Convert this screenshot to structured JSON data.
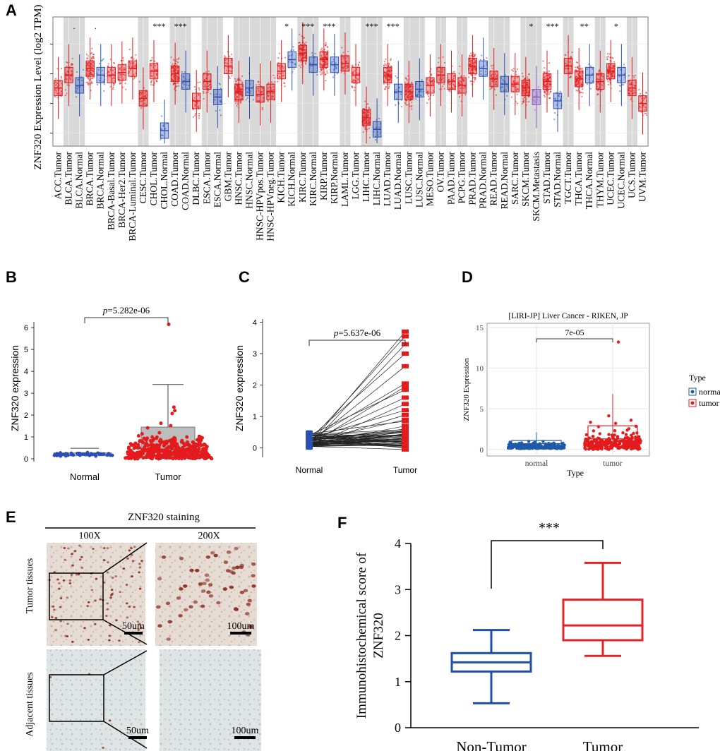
{
  "panels": {
    "A": "A",
    "B": "B",
    "C": "C",
    "D": "D",
    "E": "E",
    "F": "F"
  },
  "colors": {
    "tumor": "#e41a1c",
    "normal": "#2b4fb3",
    "metastasis": "#8e5ec2",
    "shade": "#d9d9d9",
    "boxB": "#bdbdbd",
    "fNormal": "#1f4fa8",
    "fTumor": "#e0242a",
    "dNormal": "#1e5aa8",
    "dTumor": "#e41a1c"
  },
  "chart_data": [
    {
      "id": "A",
      "type": "box",
      "ylabel": "ZNF320 Expression Level (log2 TPM)",
      "categories": [
        "ACC.Tumor",
        "BLCA.Tumor",
        "BLCA.Normal",
        "BRCA.Tumor",
        "BRCA.Normal",
        "BRCA-Basal.Tumor",
        "BRCA-Her2.Tumor",
        "BRCA-Luminal.Tumor",
        "CESC.Tumor",
        "CHOL.Tumor",
        "CHOL.Normal",
        "COAD.Tumor",
        "COAD.Normal",
        "DLBC.Tumor",
        "ESCA.Tumor",
        "ESCA.Normal",
        "GBM.Tumor",
        "HNSC.Tumor",
        "HNSC.Normal",
        "HNSC-HPVpos.Tumor",
        "HNSC-HPVneg.Tumor",
        "KICH.Tumor",
        "KICH.Normal",
        "KIRC.Tumor",
        "KIRC.Normal",
        "KIRP.Tumor",
        "KIRP.Normal",
        "LAML.Tumor",
        "LGG.Tumor",
        "LIHC.Tumor",
        "LIHC.Normal",
        "LUAD.Tumor",
        "LUAD.Normal",
        "LUSC.Tumor",
        "LUSC.Normal",
        "MESO.Tumor",
        "OV.Tumor",
        "PAAD.Tumor",
        "PCPG.Tumor",
        "PRAD.Tumor",
        "PRAD.Normal",
        "READ.Tumor",
        "READ.Normal",
        "SARC.Tumor",
        "SKCM.Tumor",
        "SKCM.Metastasis",
        "STAD.Tumor",
        "STAD.Normal",
        "TGCT.Tumor",
        "THCA.Tumor",
        "THCA.Normal",
        "THYM.Tumor",
        "UCEC.Tumor",
        "UCEC.Normal",
        "UCS.Tumor",
        "UVM.Tumor"
      ],
      "kinds": [
        "T",
        "T",
        "N",
        "T",
        "N",
        "T",
        "T",
        "T",
        "T",
        "T",
        "N",
        "T",
        "N",
        "T",
        "T",
        "N",
        "T",
        "T",
        "N",
        "T",
        "T",
        "T",
        "N",
        "T",
        "N",
        "T",
        "N",
        "T",
        "T",
        "T",
        "N",
        "T",
        "N",
        "T",
        "N",
        "T",
        "T",
        "T",
        "T",
        "T",
        "N",
        "T",
        "N",
        "T",
        "T",
        "M",
        "T",
        "N",
        "T",
        "T",
        "N",
        "T",
        "T",
        "N",
        "T",
        "T"
      ],
      "medians": [
        0.45,
        0.55,
        0.47,
        0.6,
        0.55,
        0.55,
        0.57,
        0.6,
        0.37,
        0.58,
        0.12,
        0.56,
        0.5,
        0.35,
        0.5,
        0.38,
        0.62,
        0.42,
        0.45,
        0.4,
        0.42,
        0.58,
        0.67,
        0.72,
        0.63,
        0.67,
        0.63,
        0.64,
        0.55,
        0.22,
        0.13,
        0.55,
        0.42,
        0.42,
        0.44,
        0.47,
        0.55,
        0.5,
        0.47,
        0.62,
        0.6,
        0.52,
        0.48,
        0.48,
        0.45,
        0.38,
        0.5,
        0.35,
        0.62,
        0.52,
        0.55,
        0.5,
        0.58,
        0.55,
        0.45,
        0.33
      ],
      "significance": {
        "BLCA.Tumor": ".",
        "BRCA.Tumor": ".",
        "CHOL.Tumor": "***",
        "COAD.Tumor": "***",
        "KICH.Tumor": "*",
        "KIRC.Tumor": "***",
        "KIRP.Tumor": "***",
        "LIHC.Tumor": "***",
        "LUAD.Tumor": "***",
        "SKCM.Tumor": "*",
        "STAD.Tumor": "***",
        "THCA.Tumor": "**",
        "UCEC.Tumor": "*"
      }
    },
    {
      "id": "B",
      "type": "box-scatter",
      "ylabel": "ZNF320 expression",
      "categories": [
        "Normal",
        "Tumor"
      ],
      "yticks": [
        "0",
        "1",
        "2",
        "3",
        "4",
        "5",
        "6"
      ],
      "ylim": [
        0,
        6.2
      ],
      "normal": {
        "q1": 0.14,
        "median": 0.2,
        "q3": 0.27,
        "whisker_low": 0.05,
        "whisker_high": 0.48
      },
      "tumor": {
        "q1": 0.1,
        "median": 0.4,
        "q3": 1.45,
        "whisker_low": 0.0,
        "whisker_high": 3.4,
        "max": 6.15
      },
      "pvalue_prefix": "p",
      "pvalue_text": "=5.282e-06"
    },
    {
      "id": "C",
      "type": "paired-line",
      "ylabel": "ZNF320 expression",
      "categories": [
        "Normal",
        "Tumor"
      ],
      "yticks": [
        "0",
        "1",
        "2",
        "3",
        "4"
      ],
      "ylim": [
        -0.3,
        4.1
      ],
      "pvalue_prefix": "p",
      "pvalue_text": "=5.637e-06",
      "pairs": [
        [
          0.1,
          3.7
        ],
        [
          0.2,
          3.55
        ],
        [
          0.05,
          3.3
        ],
        [
          0.3,
          3.0
        ],
        [
          0.15,
          2.6
        ],
        [
          0.25,
          2.05
        ],
        [
          0.1,
          1.95
        ],
        [
          0.4,
          1.85
        ],
        [
          0.2,
          1.6
        ],
        [
          0.05,
          1.4
        ],
        [
          0.3,
          1.2
        ],
        [
          0.12,
          1.05
        ],
        [
          0.2,
          0.9
        ],
        [
          0.45,
          0.85
        ],
        [
          0.1,
          0.7
        ],
        [
          0.25,
          0.6
        ],
        [
          0.18,
          0.5
        ],
        [
          0.05,
          0.45
        ],
        [
          0.3,
          0.4
        ],
        [
          0.22,
          0.35
        ],
        [
          0.1,
          0.3
        ],
        [
          0.15,
          0.25
        ],
        [
          0.35,
          0.2
        ],
        [
          0.08,
          0.15
        ],
        [
          0.2,
          0.1
        ],
        [
          0.12,
          0.05
        ],
        [
          0.28,
          0.0
        ],
        [
          0.05,
          -0.05
        ],
        [
          0.4,
          0.3
        ],
        [
          0.15,
          0.55
        ]
      ]
    },
    {
      "id": "D",
      "type": "box-scatter",
      "title": "[LIRI-JP] Liver Cancer - RIKEN, JP",
      "ylabel": "ZNF320 Expression",
      "xlabel": "Type",
      "categories": [
        "normal",
        "tumor"
      ],
      "yticks": [
        "0",
        "5",
        "10",
        "15"
      ],
      "ylim": [
        -0.8,
        15.5
      ],
      "pvalue_text": "7e-05",
      "normal": {
        "q1": 0.4,
        "median": 0.7,
        "q3": 1.1,
        "whisker_low": 0.0,
        "whisker_high": 2.1
      },
      "tumor": {
        "q1": 0.4,
        "median": 1.3,
        "q3": 2.9,
        "whisker_low": 0.0,
        "whisker_high": 6.8,
        "max": 13.2
      },
      "legend_title": "Type",
      "legend": [
        "normal",
        "tumor"
      ]
    },
    {
      "id": "F",
      "type": "box",
      "ylabel_line1": "Immunohistochemical score of",
      "ylabel_line2": "ZNF320",
      "categories": [
        "Non-Tumor",
        "Tumor"
      ],
      "yticks": [
        "0",
        "1",
        "2",
        "3",
        "4"
      ],
      "ylim": [
        0,
        4
      ],
      "nontumor": {
        "q1": 1.22,
        "median": 1.42,
        "q3": 1.62,
        "whisker_low": 0.53,
        "whisker_high": 2.12
      },
      "tumor": {
        "q1": 1.9,
        "median": 2.22,
        "q3": 2.78,
        "whisker_low": 1.56,
        "whisker_high": 3.58
      },
      "significance": "***"
    }
  ],
  "panelE": {
    "title": "ZNF320  staining",
    "col1": "100X",
    "col2": "200X",
    "row1": "Tumor tissues",
    "row2": "Adjacent tissues",
    "scale_a": "50um",
    "scale_b": "100um",
    "scale_c": "50um",
    "scale_d": "100um"
  }
}
